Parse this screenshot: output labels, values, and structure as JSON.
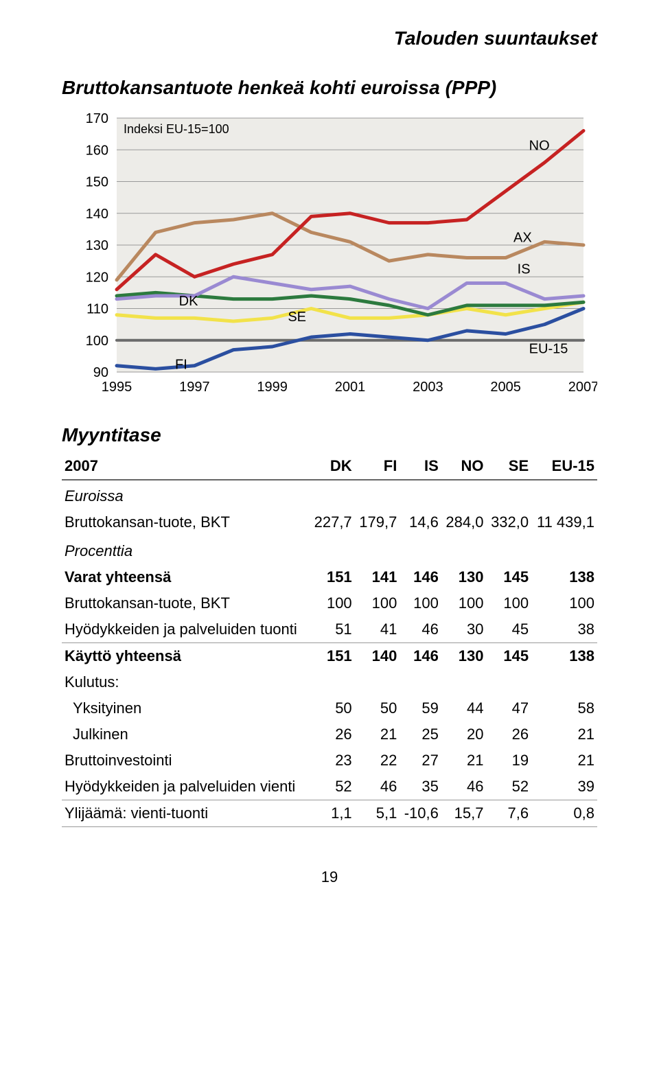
{
  "section_header": "Talouden suuntaukset",
  "chart": {
    "title": "Bruttokansantuote henkeä kohti euroissa (PPP)",
    "y_axis_label": "Indeksi EU-15=100",
    "type": "line",
    "years": [
      1995,
      1997,
      1999,
      2001,
      2003,
      2005,
      2007
    ],
    "ylim": [
      90,
      170
    ],
    "ytick_step": 10,
    "background_fill": "#edece8",
    "grid_color": "#999999",
    "axis_text_color": "#000000",
    "axis_font_size": 20,
    "series": {
      "NO": {
        "label": "NO",
        "color": "#c62222",
        "width": 5,
        "values": [
          116,
          127,
          120,
          124,
          127,
          139,
          140,
          137,
          137,
          138,
          147,
          156,
          166
        ]
      },
      "AX": {
        "label": "AX",
        "color": "#b9885f",
        "width": 5,
        "values": [
          119,
          134,
          137,
          138,
          140,
          134,
          131,
          125,
          127,
          126,
          126,
          131,
          130
        ]
      },
      "IS": {
        "label": "IS",
        "color": "#9a8ad2",
        "width": 5,
        "values": [
          113,
          114,
          114,
          120,
          118,
          116,
          117,
          113,
          110,
          118,
          118,
          113,
          114
        ]
      },
      "DK": {
        "label": "DK",
        "color": "#2c7a3e",
        "width": 5,
        "values": [
          114,
          115,
          114,
          113,
          113,
          114,
          113,
          111,
          108,
          111,
          111,
          111,
          112
        ]
      },
      "SE": {
        "label": "SE",
        "color": "#f2e24a",
        "width": 5,
        "values": [
          108,
          107,
          107,
          106,
          107,
          110,
          107,
          107,
          108,
          110,
          108,
          110,
          112
        ]
      },
      "EU-15": {
        "label": "EU-15",
        "color": "#6b6b6b",
        "width": 4,
        "values": [
          100,
          100,
          100,
          100,
          100,
          100,
          100,
          100,
          100,
          100,
          100,
          100,
          100
        ]
      },
      "FI": {
        "label": "FI",
        "color": "#2b4fa0",
        "width": 5,
        "values": [
          92,
          91,
          92,
          97,
          98,
          101,
          102,
          101,
          100,
          103,
          102,
          105,
          110
        ]
      }
    },
    "annotations": {
      "NO": {
        "x_year": 2005.6,
        "y_val": 160
      },
      "AX": {
        "x_year": 2005.2,
        "y_val": 131
      },
      "IS": {
        "x_year": 2005.3,
        "y_val": 121
      },
      "DK": {
        "x_year": 1996.6,
        "y_val": 111
      },
      "SE": {
        "x_year": 1999.4,
        "y_val": 106
      },
      "EU-15": {
        "x_year": 2005.6,
        "y_val": 96
      },
      "FI": {
        "x_year": 1996.5,
        "y_val": 91
      }
    }
  },
  "table": {
    "title": "Myyntitase",
    "year": "2007",
    "columns": [
      "DK",
      "FI",
      "IS",
      "NO",
      "SE",
      "EU-15"
    ],
    "sections": [
      {
        "subhead": "Euroissa",
        "rows": [
          {
            "label": "Bruttokansan-tuote, BKT",
            "values": [
              "227,7",
              "179,7",
              "14,6",
              "284,0",
              "332,0",
              "11 439,1"
            ]
          }
        ]
      },
      {
        "subhead": "Procenttia",
        "rows": [
          {
            "label": "Varat yhteensä",
            "bold": true,
            "values": [
              "151",
              "141",
              "146",
              "130",
              "145",
              "138"
            ]
          },
          {
            "label": "Bruttokansan-tuote, BKT",
            "values": [
              "100",
              "100",
              "100",
              "100",
              "100",
              "100"
            ]
          },
          {
            "label": "Hyödykkeiden ja palveluiden tuonti",
            "values": [
              "51",
              "41",
              "46",
              "30",
              "45",
              "38"
            ]
          }
        ]
      },
      {
        "rows": [
          {
            "label": "Käyttö yhteensä",
            "bold": true,
            "sep": true,
            "values": [
              "151",
              "140",
              "146",
              "130",
              "145",
              "138"
            ]
          },
          {
            "label": "Kulutus:",
            "values": [
              "",
              "",
              "",
              "",
              "",
              ""
            ]
          },
          {
            "label": "Yksityinen",
            "indent": true,
            "values": [
              "50",
              "50",
              "59",
              "44",
              "47",
              "58"
            ]
          },
          {
            "label": "Julkinen",
            "indent": true,
            "values": [
              "26",
              "21",
              "25",
              "20",
              "26",
              "21"
            ]
          },
          {
            "label": "Bruttoinvestointi",
            "values": [
              "23",
              "22",
              "27",
              "21",
              "19",
              "21"
            ]
          },
          {
            "label": "Hyödykkeiden ja palveluiden vienti",
            "values": [
              "52",
              "46",
              "35",
              "46",
              "52",
              "39"
            ]
          }
        ]
      },
      {
        "rows": [
          {
            "label": "Ylijäämä: vienti-tuonti",
            "sep": true,
            "values": [
              "1,1",
              "5,1",
              "-10,6",
              "15,7",
              "7,6",
              "0,8"
            ],
            "sep_after": true
          }
        ]
      }
    ]
  },
  "page_number": "19"
}
